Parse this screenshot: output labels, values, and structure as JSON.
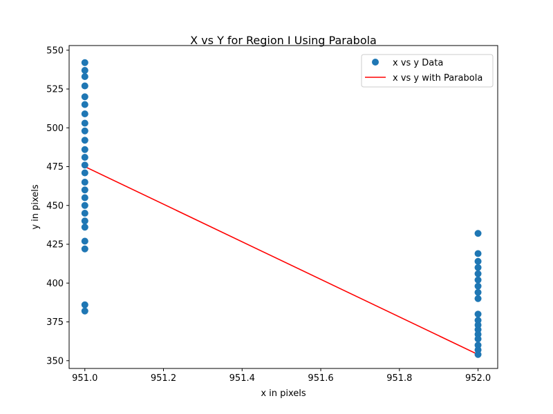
{
  "chart_data": {
    "type": "scatter",
    "title": "X vs Y for Region I Using Parabola",
    "xlabel": "x in pixels",
    "ylabel": "y in pixels",
    "xlim": [
      950.96,
      952.05
    ],
    "ylim": [
      345,
      553
    ],
    "xticks": [
      951.0,
      951.2,
      951.4,
      951.6,
      951.8,
      952.0
    ],
    "xtick_labels": [
      "951.0",
      "951.2",
      "951.4",
      "951.6",
      "951.8",
      "952.0"
    ],
    "yticks": [
      350,
      375,
      400,
      425,
      450,
      475,
      500,
      525,
      550
    ],
    "ytick_labels": [
      "350",
      "375",
      "400",
      "425",
      "450",
      "475",
      "500",
      "525",
      "550"
    ],
    "grid": false,
    "legend_position": "top-right",
    "series": [
      {
        "name": "x vs y Data",
        "kind": "scatter",
        "color": "#1f77b4",
        "points": [
          [
            951,
            542
          ],
          [
            951,
            537
          ],
          [
            951,
            533
          ],
          [
            951,
            527
          ],
          [
            951,
            520
          ],
          [
            951,
            515
          ],
          [
            951,
            509
          ],
          [
            951,
            503
          ],
          [
            951,
            498
          ],
          [
            951,
            492
          ],
          [
            951,
            486
          ],
          [
            951,
            481
          ],
          [
            951,
            476
          ],
          [
            951,
            471
          ],
          [
            951,
            465
          ],
          [
            951,
            460
          ],
          [
            951,
            455
          ],
          [
            951,
            450
          ],
          [
            951,
            445
          ],
          [
            951,
            440
          ],
          [
            951,
            436
          ],
          [
            951,
            427
          ],
          [
            951,
            422
          ],
          [
            951,
            386
          ],
          [
            951,
            382
          ],
          [
            952,
            432
          ],
          [
            952,
            419
          ],
          [
            952,
            414
          ],
          [
            952,
            410
          ],
          [
            952,
            406
          ],
          [
            952,
            402
          ],
          [
            952,
            398
          ],
          [
            952,
            394
          ],
          [
            952,
            390
          ],
          [
            952,
            380
          ],
          [
            952,
            376
          ],
          [
            952,
            373
          ],
          [
            952,
            370
          ],
          [
            952,
            367
          ],
          [
            952,
            364
          ],
          [
            952,
            360
          ],
          [
            952,
            357
          ],
          [
            952,
            354
          ]
        ]
      },
      {
        "name": "x vs y with Parabola",
        "kind": "line",
        "color": "#ff0000",
        "points": [
          [
            951,
            475
          ],
          [
            952,
            354
          ]
        ]
      }
    ]
  }
}
